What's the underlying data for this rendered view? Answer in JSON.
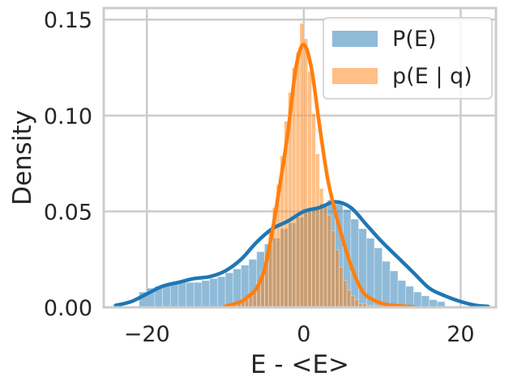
{
  "chart_data": {
    "type": "histogram",
    "xlabel": "E - <E>",
    "ylabel": "Density",
    "xlim": [
      -25.5,
      24.5
    ],
    "ylim": [
      0,
      0.156
    ],
    "xticks": [
      -20,
      0,
      20
    ],
    "xtick_labels": [
      "−20",
      "0",
      "20"
    ],
    "yticks": [
      0.0,
      0.05,
      0.1,
      0.15
    ],
    "ytick_labels": [
      "0.00",
      "0.05",
      "0.10",
      "0.15"
    ],
    "grid": true,
    "legend": "top-right",
    "series": [
      {
        "name": "P(E)",
        "color": "#1f77b4",
        "bin_width": 1.0,
        "bin_start": -21,
        "bin_values": [
          0.008,
          0.01,
          0.011,
          0.012,
          0.012,
          0.013,
          0.013,
          0.013,
          0.014,
          0.015,
          0.016,
          0.018,
          0.02,
          0.022,
          0.025,
          0.029,
          0.033,
          0.036,
          0.041,
          0.044,
          0.047,
          0.05,
          0.052,
          0.054,
          0.056,
          0.054,
          0.051,
          0.046,
          0.041,
          0.036,
          0.031,
          0.024,
          0.019,
          0.014,
          0.011,
          0.008,
          0.006,
          0.004,
          0.003
        ],
        "kde_x": [
          -24,
          -22,
          -20,
          -18,
          -16,
          -14,
          -12,
          -10,
          -8,
          -6,
          -4,
          -2,
          0,
          2,
          4,
          6,
          8,
          10,
          12,
          14,
          16,
          18,
          20,
          22,
          23.5
        ],
        "kde_y": [
          0.001,
          0.003,
          0.007,
          0.011,
          0.013,
          0.015,
          0.016,
          0.019,
          0.025,
          0.034,
          0.041,
          0.045,
          0.05,
          0.052,
          0.055,
          0.052,
          0.043,
          0.034,
          0.026,
          0.018,
          0.01,
          0.006,
          0.003,
          0.001,
          0.0005
        ]
      },
      {
        "name": "p(E | q)",
        "color": "#ff7f0e",
        "bin_width": 0.5,
        "bin_start": -9,
        "bin_values": [
          0.001,
          0.002,
          0.003,
          0.004,
          0.006,
          0.009,
          0.013,
          0.019,
          0.028,
          0.04,
          0.052,
          0.064,
          0.079,
          0.097,
          0.112,
          0.125,
          0.133,
          0.148,
          0.14,
          0.123,
          0.101,
          0.08,
          0.062,
          0.053,
          0.048,
          0.04,
          0.03,
          0.021,
          0.014,
          0.009,
          0.006,
          0.004,
          0.002,
          0.002,
          0.001,
          0.001,
          0.001
        ],
        "kde_x": [
          -10,
          -8,
          -7,
          -6,
          -5,
          -4,
          -3,
          -2,
          -1,
          0,
          1,
          2,
          3,
          4,
          5,
          6,
          7,
          8,
          10,
          12,
          14
        ],
        "kde_y": [
          0.0005,
          0.003,
          0.006,
          0.01,
          0.02,
          0.04,
          0.065,
          0.092,
          0.125,
          0.137,
          0.124,
          0.095,
          0.068,
          0.05,
          0.035,
          0.022,
          0.012,
          0.006,
          0.002,
          0.0008,
          0.0003
        ]
      }
    ]
  }
}
